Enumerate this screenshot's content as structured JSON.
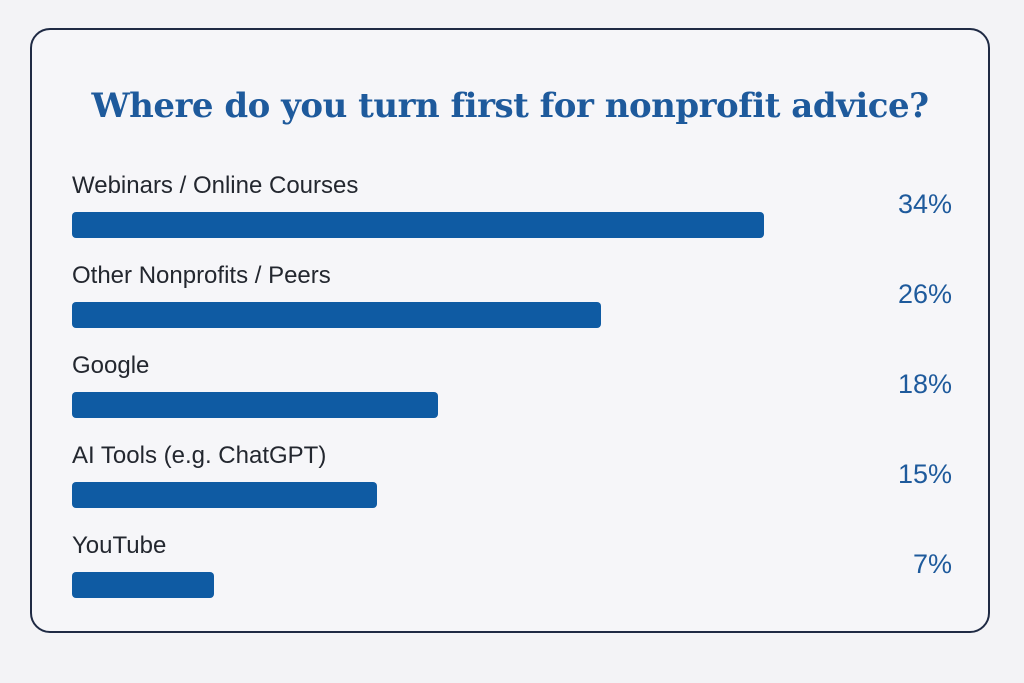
{
  "chart_data": {
    "type": "bar",
    "orientation": "horizontal",
    "title": "Where do you turn first for nonprofit advice?",
    "categories": [
      "Webinars / Online Courses",
      "Other Nonprofits / Peers",
      "Google",
      "AI Tools (e.g. ChatGPT)",
      "YouTube"
    ],
    "values": [
      34,
      26,
      18,
      15,
      7
    ],
    "value_labels": [
      "34%",
      "26%",
      "18%",
      "15%",
      "7%"
    ],
    "unit": "%",
    "xlim": [
      0,
      34
    ],
    "grid": false,
    "legend": "none",
    "colors": {
      "bar": "#0f5ba3",
      "title": "#1e5a9c",
      "value": "#1e5a9c",
      "label": "#23272f",
      "border": "#1f2a44",
      "background": "#f3f3f6"
    }
  }
}
